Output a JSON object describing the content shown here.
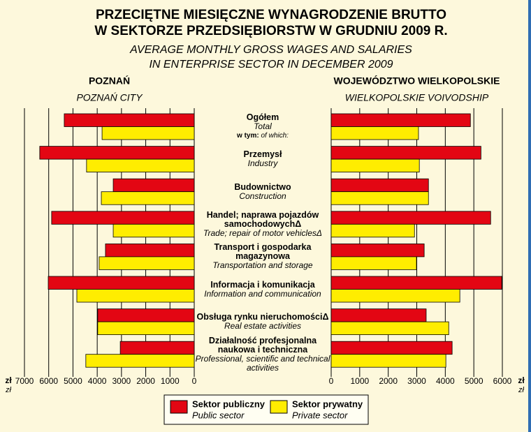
{
  "title": [
    "PRZECIĘTNE MIESIĘCZNE WYNAGRODZENIE BRUTTO",
    "W SEKTORZE PRZEDSIĘBIORSTW W GRUDNIU 2009 R."
  ],
  "subtitle": [
    "AVERAGE MONTHLY GROSS WAGES AND SALARIES",
    "IN ENTERPRISE SECTOR IN DECEMBER 2009"
  ],
  "categories": [
    "Ogółem",
    "Przemysł",
    "Budownictwo",
    "Handel; naprawa pojazdów samochodowychΔ",
    "Transport i gospodarka magazynowa",
    "Informacja i komunikacja",
    "Obsługa rynku nieruchomościΔ",
    "Działalność profesjonalna naukowa i techniczna"
  ],
  "categories_en": [
    "Total",
    "Industry",
    "Construction",
    "Trade; repair of motor vehiclesΔ",
    "Transportation and storage",
    "Information and communication",
    "Real estate activities",
    "Professional, scientific and technical activities"
  ],
  "note": "w tym:",
  "note_en": "of which:",
  "chart_data": [
    {
      "type": "bar",
      "orientation": "horizontal",
      "x_reversed": true,
      "title": "POZNAŃ",
      "subtitle": "POZNAŃ CITY",
      "unit": "zł",
      "unit_en": "zł",
      "xlim": [
        0,
        7000
      ],
      "xticks": [
        0,
        1000,
        2000,
        3000,
        4000,
        5000,
        6000,
        7000
      ],
      "grid": true,
      "series": [
        {
          "name": "Sektor publiczny",
          "name_en": "Public sector",
          "color": "#e30613",
          "values": [
            5360,
            6370,
            3340,
            5880,
            3660,
            6020,
            3980,
            3050
          ]
        },
        {
          "name": "Sektor prywatny",
          "name_en": "Private sector",
          "color": "#ffed00",
          "values": [
            3800,
            4440,
            3830,
            3340,
            3920,
            4840,
            3980,
            4470
          ]
        }
      ]
    },
    {
      "type": "bar",
      "orientation": "horizontal",
      "x_reversed": false,
      "title": "WOJEWÓDZTWO WIELKOPOLSKIE",
      "subtitle": "WIELKOPOLSKIE VOIVODSHIP",
      "unit": "zł",
      "unit_en": "zł",
      "xlim": [
        0,
        6000
      ],
      "xticks": [
        0,
        1000,
        2000,
        3000,
        4000,
        5000,
        6000
      ],
      "grid": true,
      "series": [
        {
          "name": "Sektor publiczny",
          "name_en": "Public sector",
          "color": "#e30613",
          "values": [
            4880,
            5250,
            3410,
            5590,
            3260,
            5980,
            3330,
            4240
          ]
        },
        {
          "name": "Sektor prywatny",
          "name_en": "Private sector",
          "color": "#ffed00",
          "values": [
            3060,
            3090,
            3410,
            2920,
            2990,
            4510,
            4120,
            4020
          ]
        }
      ]
    }
  ]
}
